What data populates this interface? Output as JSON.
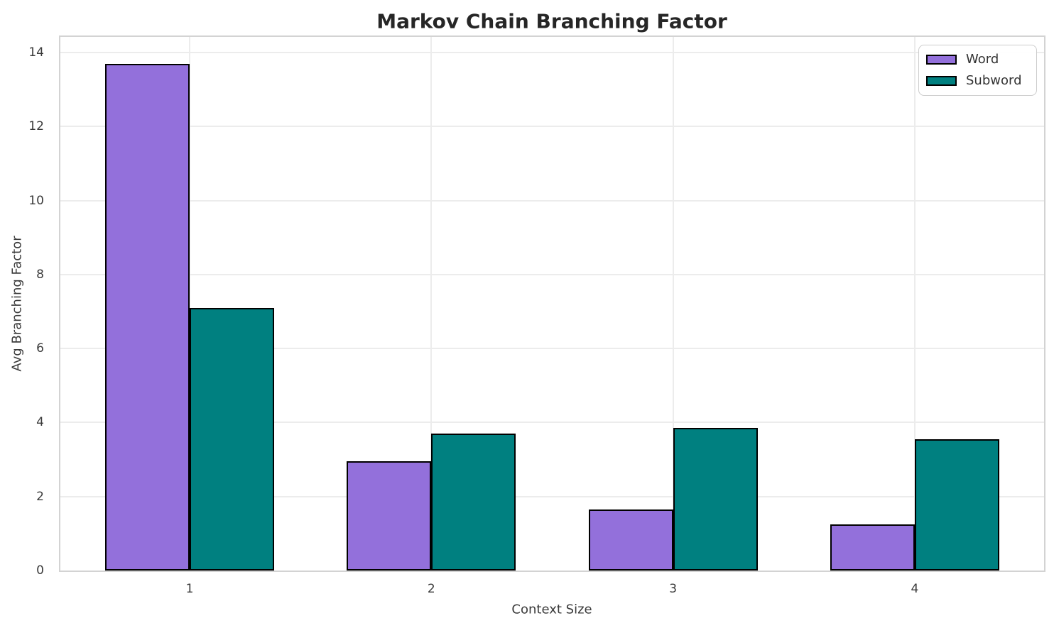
{
  "chart_data": {
    "type": "bar",
    "title": "Markov Chain Branching Factor",
    "xlabel": "Context Size",
    "ylabel": "Avg Branching Factor",
    "categories": [
      "1",
      "2",
      "3",
      "4"
    ],
    "x": [
      1,
      2,
      3,
      4
    ],
    "series": [
      {
        "name": "Word",
        "color": "#9370DB",
        "values": [
          13.7,
          2.95,
          1.65,
          1.25
        ]
      },
      {
        "name": "Subword",
        "color": "#008080",
        "values": [
          7.1,
          3.7,
          3.85,
          3.55
        ]
      }
    ],
    "bar_width": 0.35,
    "bar_edge_color": "#000000",
    "ylim": [
      0,
      14.42
    ],
    "xlim": [
      0.465,
      4.535
    ],
    "yticks": [
      0,
      2,
      4,
      6,
      8,
      10,
      12,
      14
    ],
    "grid": true,
    "legend_position": "upper right"
  },
  "style": {
    "grid_color": "#ececec",
    "spine_color": "#d3d3d3",
    "title_color": "#262626",
    "tick_color": "#3a3a3a",
    "background": "#ffffff"
  }
}
